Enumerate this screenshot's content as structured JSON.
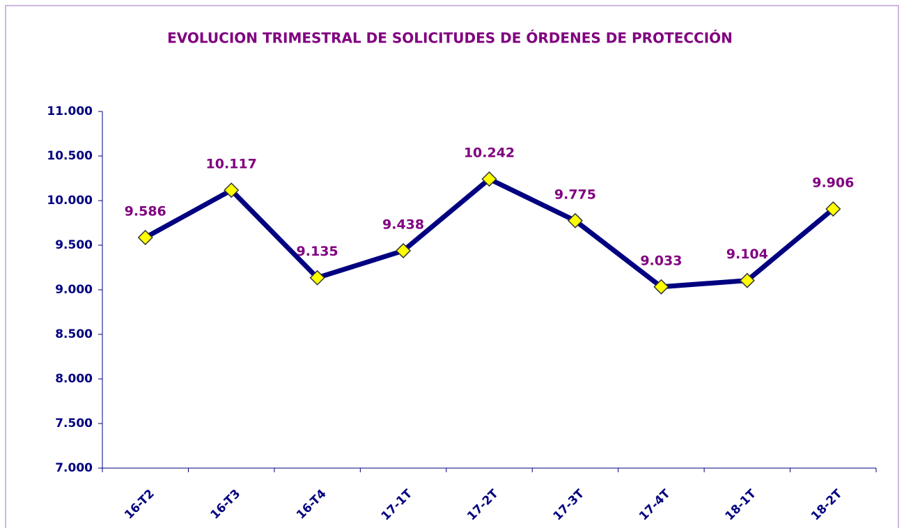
{
  "chart_data": {
    "type": "line",
    "title": "EVOLUCION TRIMESTRAL DE SOLICITUDES DE ÓRDENES DE PROTECCIÓN",
    "categories": [
      "16-T2",
      "16-T3",
      "16-T4",
      "17-1T",
      "17-2T",
      "17-3T",
      "17-4T",
      "18-1T",
      "18-2T"
    ],
    "series": [
      {
        "name": "Solicitudes",
        "color": "#000080",
        "values": [
          9586,
          10117,
          9135,
          9438,
          10242,
          9775,
          9033,
          9104,
          9906
        ],
        "value_labels": [
          "9.586",
          "10.117",
          "9.135",
          "9.438",
          "10.242",
          "9.775",
          "9.033",
          "9.104",
          "9.906"
        ]
      }
    ],
    "marker_color": "#ffff00",
    "ylim": [
      7000,
      11000
    ],
    "yticks": [
      {
        "value": 7000,
        "label": "7.000"
      },
      {
        "value": 7500,
        "label": "7.500"
      },
      {
        "value": 8000,
        "label": "8.000"
      },
      {
        "value": 8500,
        "label": "8.500"
      },
      {
        "value": 9000,
        "label": "9.000"
      },
      {
        "value": 9500,
        "label": "9.500"
      },
      {
        "value": 10000,
        "label": "10.000"
      },
      {
        "value": 10500,
        "label": "10.500"
      },
      {
        "value": 11000,
        "label": "11.000"
      }
    ],
    "grid": false
  }
}
